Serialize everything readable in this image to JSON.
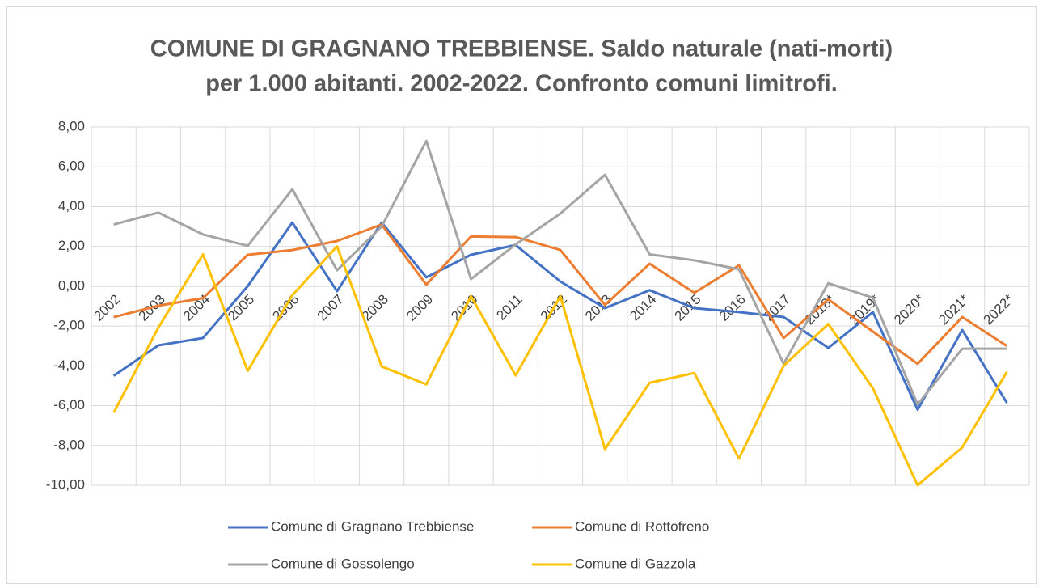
{
  "chart_data": {
    "type": "line",
    "title": "COMUNE DI GRAGNANO TREBBIENSE. Saldo naturale (nati-morti)",
    "subtitle": "per 1.000 abitanti. 2002-2022. Confronto comuni limitrofi.",
    "categories": [
      "2002",
      "2003",
      "2004",
      "2005",
      "2006",
      "2007",
      "2008",
      "2009",
      "2010",
      "2011",
      "2012",
      "2013",
      "2014",
      "2015",
      "2016",
      "2017",
      "2018*",
      "2019*",
      "2020*",
      "2021*",
      "2022*"
    ],
    "series": [
      {
        "name": "Comune di Gragnano Trebbiense",
        "color": "#4472c4",
        "values": [
          -4.5,
          -2.97,
          -2.6,
          0,
          3.2,
          -0.25,
          3.2,
          0.45,
          1.58,
          2.07,
          0.24,
          -1.1,
          -0.2,
          -1.1,
          -1.3,
          -1.55,
          -3.1,
          -1.3,
          -6.2,
          -2.2,
          -5.86
        ]
      },
      {
        "name": "Comune di Rottofreno",
        "color": "#ed7d31",
        "values": [
          -1.55,
          -0.98,
          -0.6,
          1.58,
          1.82,
          2.27,
          3.1,
          0.08,
          2.5,
          2.47,
          1.82,
          -0.94,
          1.13,
          -0.33,
          1.05,
          -2.6,
          -0.66,
          -2.28,
          -3.9,
          -1.55,
          -3.0
        ]
      },
      {
        "name": "Comune di Gossolengo",
        "color": "#a5a5a5",
        "values": [
          3.1,
          3.7,
          2.6,
          2.03,
          4.87,
          0.8,
          3.0,
          7.3,
          0.36,
          2.1,
          3.65,
          5.6,
          1.6,
          1.3,
          0.85,
          -3.9,
          0.15,
          -0.58,
          -5.94,
          -3.14,
          -3.14
        ]
      },
      {
        "name": "Comune di Gazzola",
        "color": "#ffc000",
        "values": [
          -6.35,
          -2.08,
          1.6,
          -4.25,
          -0.45,
          2.0,
          -4.03,
          -4.93,
          -0.5,
          -4.48,
          -0.5,
          -8.18,
          -4.85,
          -4.36,
          -8.66,
          -4.0,
          -1.9,
          -5.13,
          -10,
          -8.1,
          -4.3
        ]
      }
    ],
    "ylim": [
      -10,
      8
    ],
    "yticks": [
      {
        "value": -10,
        "label": "-10,00"
      },
      {
        "value": -8,
        "label": "-8,00"
      },
      {
        "value": -6,
        "label": "-6,00"
      },
      {
        "value": -4,
        "label": "-4,00"
      },
      {
        "value": -2,
        "label": "-2,00"
      },
      {
        "value": 0,
        "label": "0,00"
      },
      {
        "value": 2,
        "label": "2,00"
      },
      {
        "value": 4,
        "label": "4,00"
      },
      {
        "value": 6,
        "label": "6,00"
      },
      {
        "value": 8,
        "label": "8,00"
      }
    ],
    "grid": true
  }
}
